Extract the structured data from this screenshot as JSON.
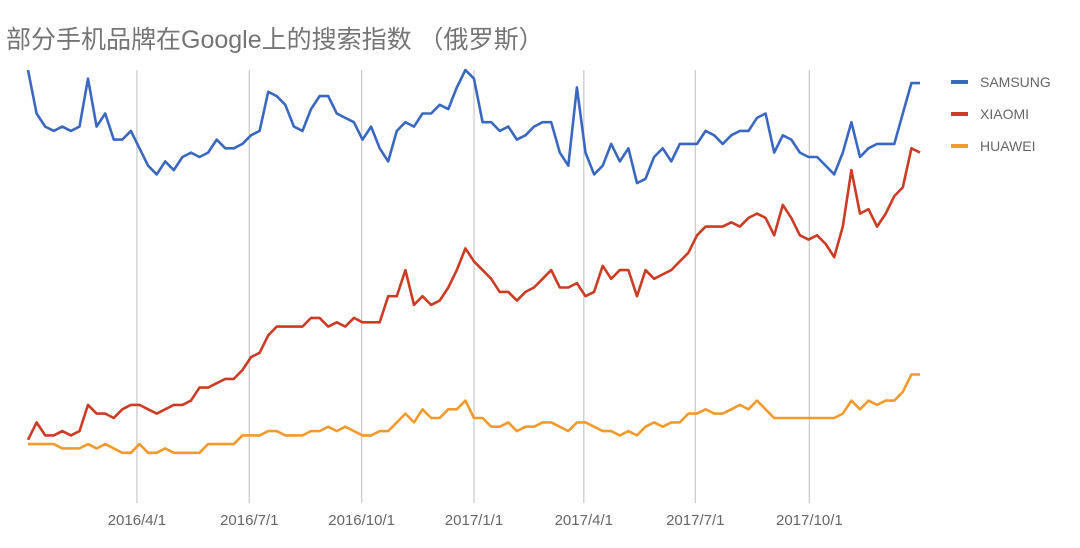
{
  "chart_data": {
    "type": "line",
    "title": "部分手机品牌在Google上的搜索指数 （俄罗斯）",
    "xlabel": "",
    "ylabel": "",
    "ylim": [
      0,
      100
    ],
    "x_interval": "weekly",
    "grid": "vertical",
    "legend_position": "right",
    "x_ticks": [
      {
        "label": "2016/4/1",
        "pos": 12.7
      },
      {
        "label": "2016/7/1",
        "pos": 25.8
      },
      {
        "label": "2016/10/1",
        "pos": 38.9
      },
      {
        "label": "2017/1/1",
        "pos": 52.0
      },
      {
        "label": "2017/4/1",
        "pos": 64.8
      },
      {
        "label": "2017/7/1",
        "pos": 77.8
      },
      {
        "label": "2017/10/1",
        "pos": 91.1
      }
    ],
    "series": [
      {
        "name": "SAMSUNG",
        "color": "#3b68bf",
        "values": [
          100,
          90,
          87,
          86,
          87,
          86,
          87,
          98,
          87,
          90,
          84,
          84,
          86,
          82,
          78,
          76,
          79,
          77,
          80,
          81,
          80,
          81,
          84,
          82,
          82,
          83,
          85,
          86,
          95,
          94,
          92,
          87,
          86,
          91,
          94,
          94,
          90,
          89,
          88,
          84,
          87,
          82,
          79,
          86,
          88,
          87,
          90,
          90,
          92,
          91,
          96,
          100,
          98,
          88,
          88,
          86,
          87,
          84,
          85,
          87,
          88,
          88,
          81,
          78,
          96,
          81,
          76,
          78,
          83,
          79,
          82,
          74,
          75,
          80,
          82,
          79,
          83,
          83,
          83,
          86,
          85,
          83,
          85,
          86,
          86,
          89,
          90,
          81,
          85,
          84,
          81,
          80,
          80,
          78,
          76,
          81,
          88,
          80,
          82,
          83,
          83,
          83,
          90,
          97,
          97
        ]
      },
      {
        "name": "XIAOMI",
        "color": "#cc3b24",
        "values": [
          15,
          19,
          16,
          16,
          17,
          16,
          17,
          23,
          21,
          21,
          20,
          22,
          23,
          23,
          22,
          21,
          22,
          23,
          23,
          24,
          27,
          27,
          28,
          29,
          29,
          31,
          34,
          35,
          39,
          41,
          41,
          41,
          41,
          43,
          43,
          41,
          42,
          41,
          43,
          42,
          42,
          42,
          48,
          48,
          54,
          46,
          48,
          46,
          47,
          50,
          54,
          59,
          56,
          54,
          52,
          49,
          49,
          47,
          49,
          50,
          52,
          54,
          50,
          50,
          51,
          48,
          49,
          55,
          52,
          54,
          54,
          48,
          54,
          52,
          53,
          54,
          56,
          58,
          62,
          64,
          64,
          64,
          65,
          64,
          66,
          67,
          66,
          62,
          69,
          66,
          62,
          61,
          62,
          60,
          57,
          64,
          77,
          67,
          68,
          64,
          67,
          71,
          73,
          82,
          81
        ]
      },
      {
        "name": "HUAWEI",
        "color": "#f39a2c",
        "values": [
          14,
          14,
          14,
          14,
          13,
          13,
          13,
          14,
          13,
          14,
          13,
          12,
          12,
          14,
          12,
          12,
          13,
          12,
          12,
          12,
          12,
          14,
          14,
          14,
          14,
          16,
          16,
          16,
          17,
          17,
          16,
          16,
          16,
          17,
          17,
          18,
          17,
          18,
          17,
          16,
          16,
          17,
          17,
          19,
          21,
          19,
          22,
          20,
          20,
          22,
          22,
          24,
          20,
          20,
          18,
          18,
          19,
          17,
          18,
          18,
          19,
          19,
          18,
          17,
          19,
          19,
          18,
          17,
          17,
          16,
          17,
          16,
          18,
          19,
          18,
          19,
          19,
          21,
          21,
          22,
          21,
          21,
          22,
          23,
          22,
          24,
          22,
          20,
          20,
          20,
          20,
          20,
          20,
          20,
          20,
          21,
          24,
          22,
          24,
          23,
          24,
          24,
          26,
          30,
          30
        ]
      }
    ]
  }
}
